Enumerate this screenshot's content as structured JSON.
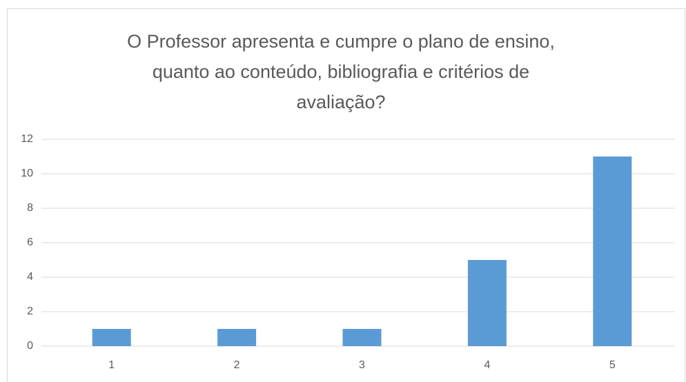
{
  "chart_data": {
    "type": "bar",
    "title": [
      "O Professor apresenta e cumpre o plano de ensino,",
      "quanto ao  conteúdo, bibliografia e critérios de",
      "avaliação?"
    ],
    "categories": [
      "1",
      "2",
      "3",
      "4",
      "5"
    ],
    "values": [
      1,
      1,
      1,
      5,
      11
    ],
    "color": "#5b9bd5",
    "ylim": [
      0,
      12
    ],
    "yticks": [
      0,
      2,
      4,
      6,
      8,
      10,
      12
    ],
    "grid": true
  }
}
